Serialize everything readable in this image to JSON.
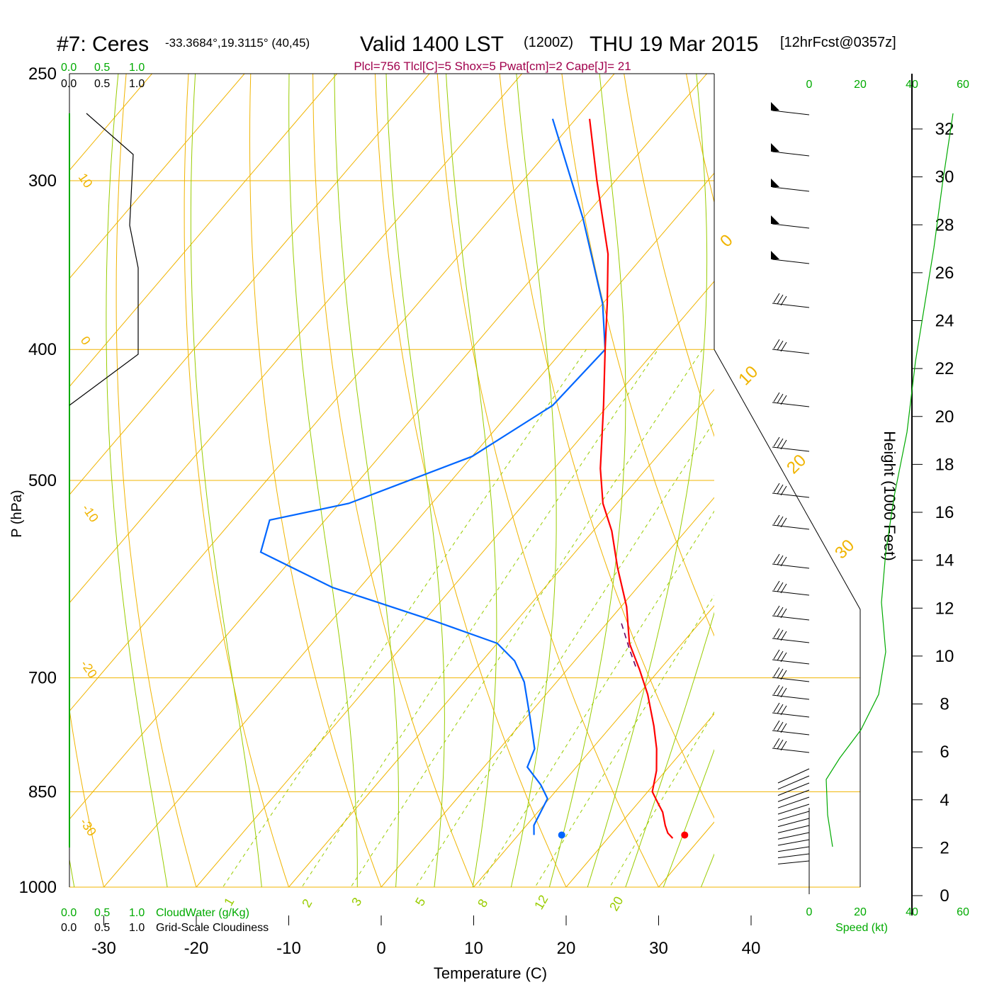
{
  "header": {
    "station": "#7: Ceres",
    "coords": "-33.3684°,19.3115° (40,45)",
    "valid": "Valid 1400 LST",
    "zulu": "(1200Z)",
    "date": "THU 19 Mar 2015",
    "forecast": "[12hrFcst@0357z]",
    "indices": "Plcl=756 Tlcl[C]=5 Shox=5 Pwat[cm]=2 Cape[J]= 21"
  },
  "labels": {
    "cw_green": [
      "0.0",
      "0.5",
      "1.0"
    ],
    "cw_black": [
      "0.0",
      "0.5",
      "1.0"
    ],
    "cloudwater": "CloudWater (g/Kg)",
    "cloudiness": "Grid-Scale Cloudiness",
    "speed_ticks": [
      "0",
      "20",
      "40",
      "60"
    ],
    "speed_label": "Speed (kt)"
  },
  "colors": {
    "temperature": "#ff0000",
    "dewpoint": "#0066ff",
    "isotherm": "#f0b400",
    "dry_adiabat": "#f0b400",
    "moist_adiabat": "#99cc00",
    "mixing_ratio": "#99cc00",
    "accent_green": "#00aa00",
    "indices": "#a0004c"
  },
  "chart_data": {
    "type": "skew-t",
    "title": "#7: Ceres Valid 1400 LST (1200Z) THU 19 Mar 2015",
    "xlabel": "Temperature (C)",
    "ylabel": "P (hPa)",
    "y2label": "Height (1000 Feet)",
    "xlim": [
      -30,
      40
    ],
    "plim": [
      250,
      1000
    ],
    "x_ticks": [
      -30,
      -20,
      -10,
      0,
      10,
      20,
      30,
      40
    ],
    "p_ticks": [
      250,
      300,
      400,
      500,
      700,
      850,
      1000
    ],
    "height_ticks": [
      0,
      2,
      4,
      6,
      8,
      10,
      12,
      14,
      16,
      18,
      20,
      22,
      24,
      26,
      28,
      30,
      32
    ],
    "isotherm_labels": [
      "10",
      "0",
      "-10",
      "-20",
      "-30"
    ],
    "dry_adiabat_labels": [
      "0",
      "10",
      "20",
      "30"
    ],
    "moist_adiabat_labels": [
      "5",
      "8",
      "12",
      "20"
    ],
    "mixing_ratio_labels": [
      "1",
      "2",
      "3"
    ],
    "temperature_profile": [
      {
        "p": 920,
        "t": 27.0
      },
      {
        "p": 912,
        "t": 26.0
      },
      {
        "p": 900,
        "t": 25.0
      },
      {
        "p": 880,
        "t": 23.5
      },
      {
        "p": 865,
        "t": 22.0
      },
      {
        "p": 850,
        "t": 20.5
      },
      {
        "p": 820,
        "t": 19.0
      },
      {
        "p": 790,
        "t": 17.0
      },
      {
        "p": 760,
        "t": 14.6
      },
      {
        "p": 720,
        "t": 11.0
      },
      {
        "p": 690,
        "t": 7.8
      },
      {
        "p": 660,
        "t": 4.3
      },
      {
        "p": 620,
        "t": 0.6
      },
      {
        "p": 580,
        "t": -4.0
      },
      {
        "p": 545,
        "t": -8.0
      },
      {
        "p": 520,
        "t": -11.5
      },
      {
        "p": 490,
        "t": -15.0
      },
      {
        "p": 440,
        "t": -20.5
      },
      {
        "p": 400,
        "t": -25.5
      },
      {
        "p": 370,
        "t": -29.5
      },
      {
        "p": 340,
        "t": -34.0
      },
      {
        "p": 300,
        "t": -42.0
      },
      {
        "p": 270,
        "t": -48.5
      }
    ],
    "dewpoint_profile": [
      {
        "p": 915,
        "t": 11.7
      },
      {
        "p": 900,
        "t": 10.8
      },
      {
        "p": 860,
        "t": 9.8
      },
      {
        "p": 840,
        "t": 7.8
      },
      {
        "p": 815,
        "t": 4.7
      },
      {
        "p": 790,
        "t": 3.8
      },
      {
        "p": 750,
        "t": 0.5
      },
      {
        "p": 705,
        "t": -3.5
      },
      {
        "p": 680,
        "t": -6.5
      },
      {
        "p": 660,
        "t": -10.0
      },
      {
        "p": 635,
        "t": -19.0
      },
      {
        "p": 600,
        "t": -33.0
      },
      {
        "p": 565,
        "t": -44.0
      },
      {
        "p": 535,
        "t": -46.0
      },
      {
        "p": 520,
        "t": -39.0
      },
      {
        "p": 480,
        "t": -30.0
      },
      {
        "p": 440,
        "t": -26.0
      },
      {
        "p": 400,
        "t": -25.5
      },
      {
        "p": 370,
        "t": -30.0
      },
      {
        "p": 320,
        "t": -40.0
      },
      {
        "p": 270,
        "t": -52.5
      }
    ],
    "parcel_segment": [
      {
        "p": 638,
        "t": 1.6
      },
      {
        "p": 668,
        "t": 5.0
      },
      {
        "p": 690,
        "t": 7.5
      }
    ],
    "surface_temperature": {
      "p": 915,
      "t": 28.0
    },
    "surface_dewpoint": {
      "p": 915,
      "t": 14.7
    }
  }
}
